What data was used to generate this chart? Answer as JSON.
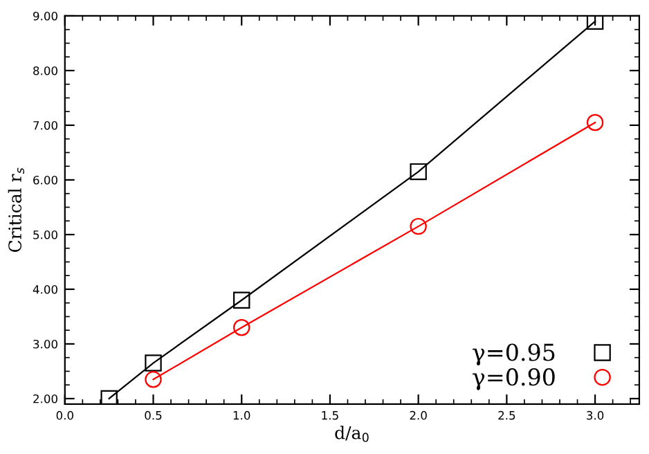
{
  "chart_data": {
    "type": "line",
    "xlabel": "d/a$_{0}$",
    "ylabel": "Critical r$_{s}$",
    "series": [
      {
        "name": "γ=0.95",
        "color": "#000000",
        "marker": "square",
        "x": [
          0.25,
          0.5,
          1.0,
          2.0,
          3.0
        ],
        "values": [
          2.0,
          2.65,
          3.8,
          6.15,
          8.9
        ]
      },
      {
        "name": "γ=0.90",
        "color": "#ff0000",
        "marker": "circle",
        "x": [
          0.5,
          1.0,
          2.0,
          3.0
        ],
        "values": [
          2.35,
          3.3,
          5.15,
          7.05
        ]
      }
    ],
    "xlim": [
      0,
      3.25
    ],
    "xticks": [
      {
        "value": 0,
        "label": "0.0"
      },
      0.5,
      {
        "value": 1,
        "label": "1.0"
      },
      1.5,
      {
        "value": 2,
        "label": "2.0"
      },
      2.5,
      {
        "value": 3,
        "label": "3.0"
      }
    ],
    "ylim": [
      1.9,
      9.0
    ],
    "yticks": [
      {
        "value": 2,
        "label": "2.00"
      },
      {
        "value": 3,
        "label": "3.00"
      },
      {
        "value": 4,
        "label": "4.00"
      },
      {
        "value": 5,
        "label": "5.00"
      },
      {
        "value": 6,
        "label": "6.00"
      },
      {
        "value": 7,
        "label": "7.00"
      },
      {
        "value": 8,
        "label": "8.00"
      },
      {
        "value": 9,
        "label": "9.00"
      }
    ],
    "grid": false,
    "legend": "bottom right",
    "line_style": "solid"
  }
}
